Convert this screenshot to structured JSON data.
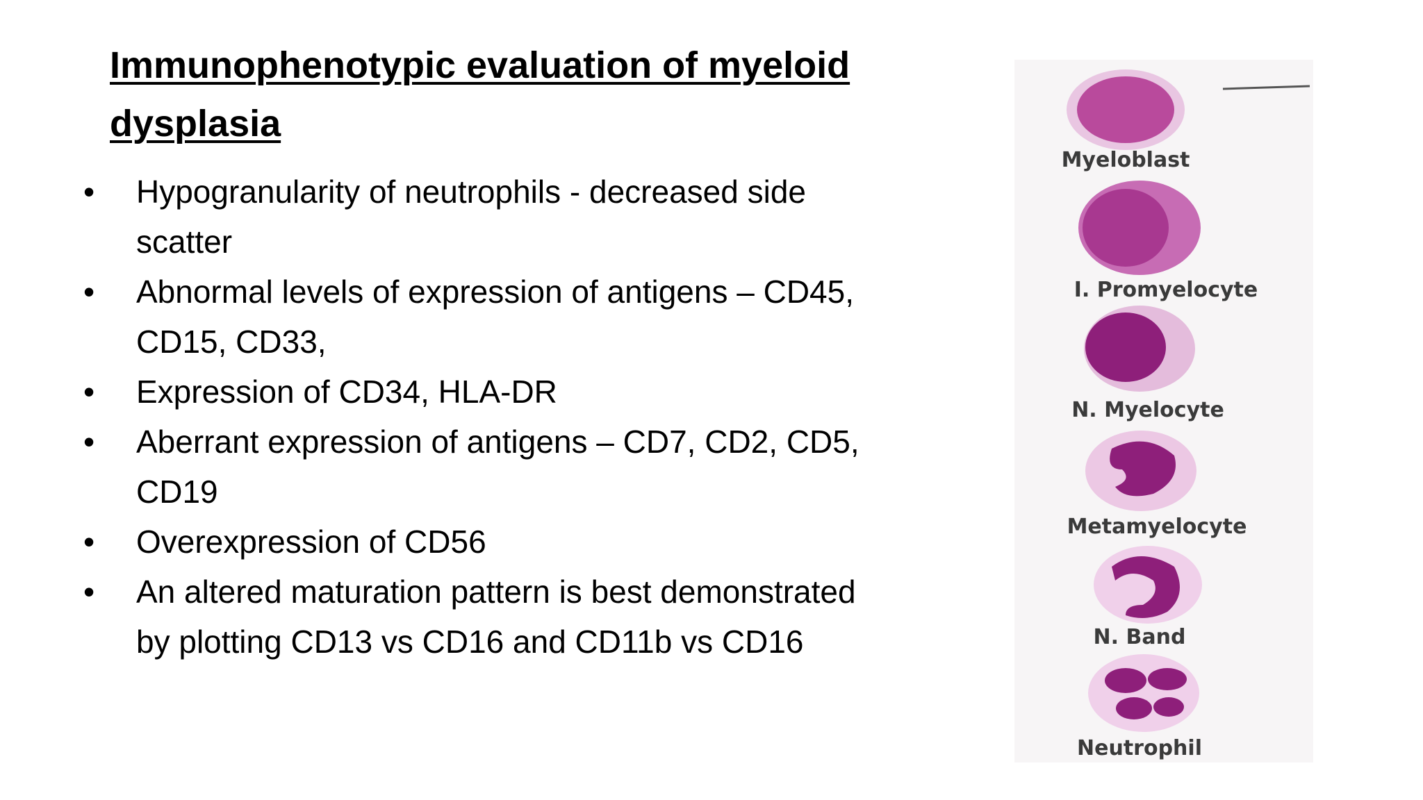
{
  "title": "Immunophenotypic evaluation of myeloid dysplasia",
  "bullets": [
    "Hypogranularity of neutrophils -  decreased side scatter",
    "Abnormal levels of expression of antigens – CD45, CD15, CD33,",
    "Expression of CD34, HLA-DR",
    "Aberrant expression of antigens – CD7, CD2, CD5, CD19",
    "Overexpression of CD56",
    "An altered maturation pattern is best demonstrated by plotting CD13 vs CD16 and CD11b vs CD16"
  ],
  "figure": {
    "labels": [
      "Myeloblast",
      "I. Promyelocyte",
      "N. Myelocyte",
      "Metamyelocyte",
      "N. Band",
      "Neutrophil"
    ]
  }
}
